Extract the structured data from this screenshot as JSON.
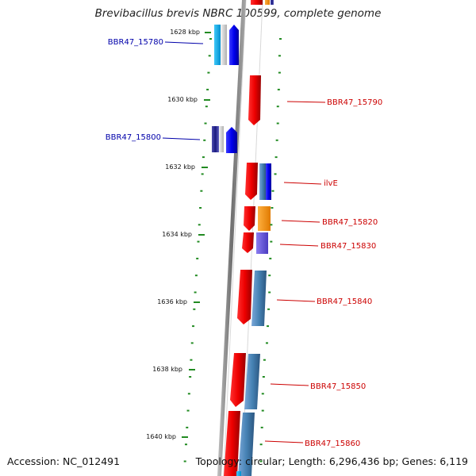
{
  "title": "Brevibacillus brevis NBRC 100599, complete genome",
  "footer": {
    "accession": "Accession: NC_012491",
    "info": "Topology: circular; Length: 6,296,436 bp; Genes: 6,119"
  },
  "colors": {
    "forward_label": "#0000aa",
    "reverse_label": "#cc0000",
    "gc_tick": "#228b22",
    "backbone": "#808080"
  },
  "ticks": [
    {
      "label": "1628 kbp",
      "kbp": 1628
    },
    {
      "label": "1630 kbp",
      "kbp": 1630
    },
    {
      "label": "1632 kbp",
      "kbp": 1632
    },
    {
      "label": "1634 kbp",
      "kbp": 1634
    },
    {
      "label": "1636 kbp",
      "kbp": 1636
    },
    {
      "label": "1638 kbp",
      "kbp": 1638
    },
    {
      "label": "1640 kbp",
      "kbp": 1640
    }
  ],
  "genes": [
    {
      "name": "BBR47_15780",
      "strand": "forward"
    },
    {
      "name": "BBR47_15790",
      "strand": "reverse"
    },
    {
      "name": "BBR47_15800",
      "strand": "forward"
    },
    {
      "name": "ilvE",
      "strand": "reverse"
    },
    {
      "name": "BBR47_15820",
      "strand": "reverse"
    },
    {
      "name": "BBR47_15830",
      "strand": "reverse"
    },
    {
      "name": "BBR47_15840",
      "strand": "reverse"
    },
    {
      "name": "BBR47_15850",
      "strand": "reverse"
    },
    {
      "name": "BBR47_15860",
      "strand": "reverse"
    }
  ]
}
